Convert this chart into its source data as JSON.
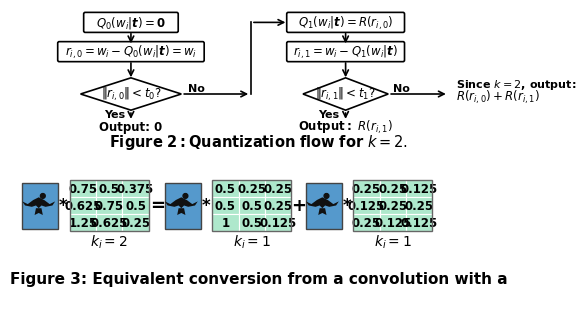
{
  "bg_color": "#ffffff",
  "cell_color": "#aee8cc",
  "blue_color": "#5599cc",
  "matrix1": [
    [
      0.75,
      0.5,
      0.375
    ],
    [
      0.625,
      0.75,
      0.5
    ],
    [
      1.25,
      0.625,
      0.25
    ]
  ],
  "matrix2": [
    [
      0.5,
      0.25,
      0.25
    ],
    [
      0.5,
      0.5,
      0.25
    ],
    [
      1.0,
      0.5,
      0.125
    ]
  ],
  "matrix3": [
    [
      0.25,
      0.25,
      0.125
    ],
    [
      0.125,
      0.25,
      0.25
    ],
    [
      0.25,
      0.125,
      0.125
    ]
  ],
  "cell_fontsize": 8.5,
  "label_fontsize": 10,
  "op_fontsize": 13,
  "fig2_caption": "Figure 2: Quantization flow for $k = 2$.",
  "fig3_caption": "Figure 3: Equivalent conversion from a convolution with a",
  "caption_fontsize": 11,
  "flowchart_fontsize": 8.5,
  "box1_left_text": "$Q_0(w_i|t) = 0$",
  "box2_left_text": "$r_{i,0} = w_i - Q_0(w_i|t) = w_i$",
  "diamond1_text": "$\\|r_{i,0}\\| < t_0?$",
  "box1_right_text": "$Q_1(w_i|t) = R(r_{i,0})$",
  "box2_right_text": "$r_{i,1} = w_i - Q_1(w_i|t)$",
  "diamond2_text": "$\\|r_{i,1}\\| < t_1?$",
  "output_left": "Output: 0",
  "output_right": "$\\mathrm{Output:}\\ R(r_{i,1})$",
  "since_line1": "Since $k = 2$, output:",
  "since_line2": "$R(r_{i,0}) + R(r_{i,1})$"
}
